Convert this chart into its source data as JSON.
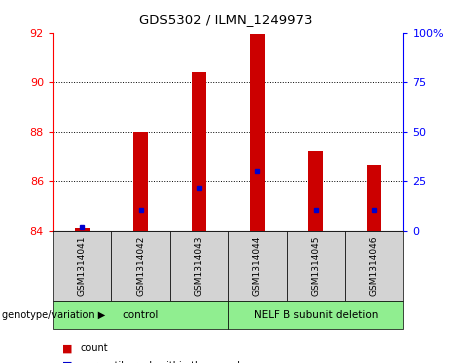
{
  "title": "GDS5302 / ILMN_1249973",
  "samples": [
    "GSM1314041",
    "GSM1314042",
    "GSM1314043",
    "GSM1314044",
    "GSM1314045",
    "GSM1314046"
  ],
  "count_values": [
    84.12,
    88.0,
    90.42,
    91.95,
    87.2,
    86.65
  ],
  "percentile_values": [
    84.13,
    84.82,
    85.72,
    86.42,
    84.82,
    84.82
  ],
  "y_min": 84,
  "y_max": 92,
  "y_ticks": [
    84,
    86,
    88,
    90,
    92
  ],
  "y_right_ticks": [
    0,
    25,
    50,
    75,
    100
  ],
  "bar_color": "#cc0000",
  "percentile_color": "#0000cc",
  "bar_width": 0.25,
  "background_color": "#d3d3d3",
  "group_color": "#90ee90",
  "groups": [
    {
      "label": "control",
      "start": 0,
      "end": 3
    },
    {
      "label": "NELF B subunit deletion",
      "start": 3,
      "end": 6
    }
  ]
}
